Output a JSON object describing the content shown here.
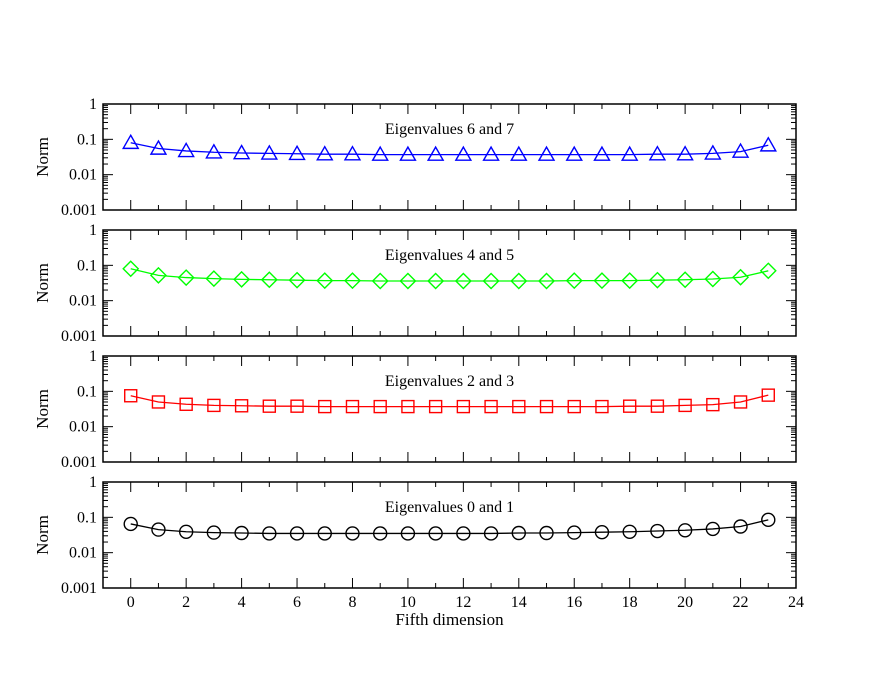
{
  "chart_data": {
    "type": "line",
    "xlabel": "Fifth dimension",
    "x": [
      0,
      1,
      2,
      3,
      4,
      5,
      6,
      7,
      8,
      9,
      10,
      11,
      12,
      13,
      14,
      15,
      16,
      17,
      18,
      19,
      20,
      21,
      22,
      23
    ],
    "xlim": [
      -1,
      24
    ],
    "xticks": [
      "0",
      "2",
      "4",
      "6",
      "8",
      "10",
      "12",
      "14",
      "16",
      "18",
      "20",
      "22",
      "24"
    ],
    "y_scale": "log",
    "ylim": [
      0.001,
      1
    ],
    "yticks": [
      "0.001",
      "0.01",
      "0.1",
      "1"
    ],
    "grid": false,
    "panels": [
      {
        "title": "Eigenvalues 6 and 7",
        "ylabel": "Norm",
        "color": "#0000ff",
        "marker": "triangle",
        "values": [
          0.08,
          0.055,
          0.047,
          0.043,
          0.041,
          0.04,
          0.039,
          0.038,
          0.038,
          0.037,
          0.037,
          0.037,
          0.037,
          0.037,
          0.037,
          0.037,
          0.037,
          0.037,
          0.037,
          0.038,
          0.038,
          0.04,
          0.045,
          0.068
        ]
      },
      {
        "title": "Eigenvalues 4 and 5",
        "ylabel": "Norm",
        "color": "#00ff00",
        "marker": "diamond",
        "values": [
          0.08,
          0.052,
          0.045,
          0.042,
          0.04,
          0.039,
          0.038,
          0.037,
          0.037,
          0.036,
          0.036,
          0.036,
          0.036,
          0.036,
          0.036,
          0.036,
          0.037,
          0.037,
          0.037,
          0.038,
          0.039,
          0.041,
          0.046,
          0.07
        ]
      },
      {
        "title": "Eigenvalues 2 and 3",
        "ylabel": "Norm",
        "color": "#ff0000",
        "marker": "square",
        "values": [
          0.075,
          0.05,
          0.043,
          0.04,
          0.039,
          0.038,
          0.038,
          0.037,
          0.037,
          0.037,
          0.037,
          0.037,
          0.037,
          0.037,
          0.037,
          0.037,
          0.037,
          0.037,
          0.038,
          0.038,
          0.04,
          0.042,
          0.05,
          0.078
        ]
      },
      {
        "title": "Eigenvalues 0 and 1",
        "ylabel": "Norm",
        "color": "#000000",
        "marker": "circle",
        "values": [
          0.065,
          0.045,
          0.039,
          0.037,
          0.036,
          0.035,
          0.035,
          0.035,
          0.035,
          0.035,
          0.035,
          0.035,
          0.035,
          0.035,
          0.036,
          0.036,
          0.037,
          0.038,
          0.039,
          0.041,
          0.043,
          0.047,
          0.055,
          0.085
        ]
      }
    ]
  }
}
